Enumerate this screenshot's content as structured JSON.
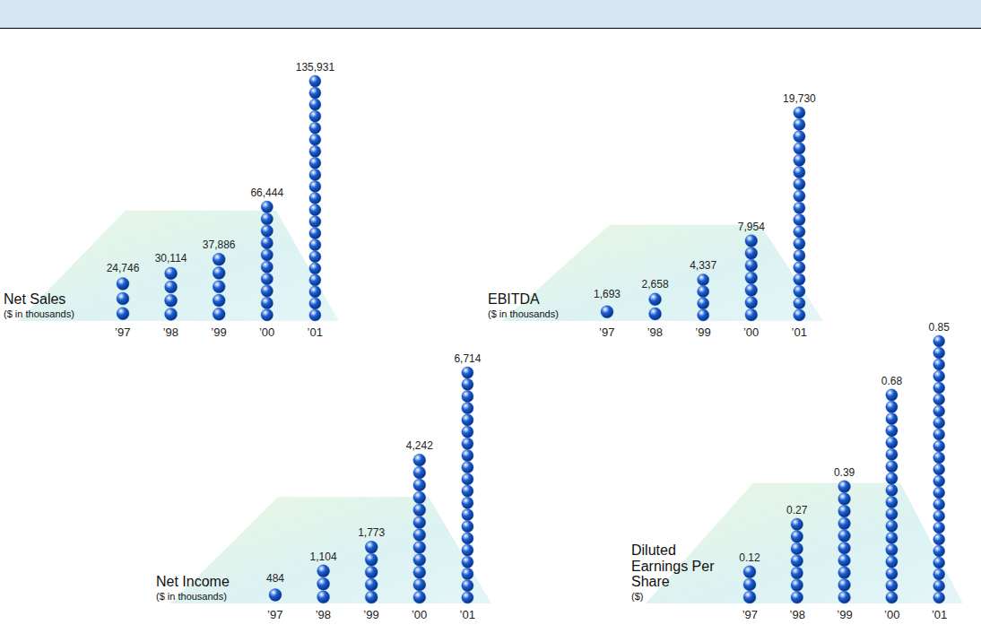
{
  "chart_data": [
    {
      "type": "bar",
      "title": "Net Sales",
      "subtitle": "($ in thousands)",
      "categories": [
        "’97",
        "’98",
        "’99",
        "’00",
        "’01"
      ],
      "values": [
        24746,
        30114,
        37886,
        66444,
        135931
      ],
      "value_labels": [
        "24,746",
        "30,114",
        "37,886",
        "66,444",
        "135,931"
      ],
      "color": "#1a5fd6",
      "data_labels": true,
      "tick_labels": "x"
    },
    {
      "type": "bar",
      "title": "EBITDA",
      "subtitle": "($ in thousands)",
      "categories": [
        "’97",
        "’98",
        "’99",
        "’00",
        "’01"
      ],
      "values": [
        1693,
        2658,
        4337,
        7954,
        19730
      ],
      "value_labels": [
        "1,693",
        "2,658",
        "4,337",
        "7,954",
        "19,730"
      ],
      "color": "#1a5fd6",
      "data_labels": true,
      "tick_labels": "x"
    },
    {
      "type": "bar",
      "title": "Net Income",
      "subtitle": "($ in thousands)",
      "categories": [
        "’97",
        "’98",
        "’99",
        "’00",
        "’01"
      ],
      "values": [
        484,
        1104,
        1773,
        4242,
        6714
      ],
      "value_labels": [
        "484",
        "1,104",
        "1,773",
        "4,242",
        "6,714"
      ],
      "color": "#1a5fd6",
      "data_labels": true,
      "tick_labels": "x"
    },
    {
      "type": "bar",
      "title": "Diluted Earnings Per Share",
      "subtitle": "($)",
      "categories": [
        "’97",
        "’98",
        "’99",
        "’00",
        "’01"
      ],
      "values": [
        0.12,
        0.27,
        0.39,
        0.68,
        0.85
      ],
      "color": "#1a5fd6",
      "data_labels": true,
      "tick_labels": "x"
    }
  ]
}
